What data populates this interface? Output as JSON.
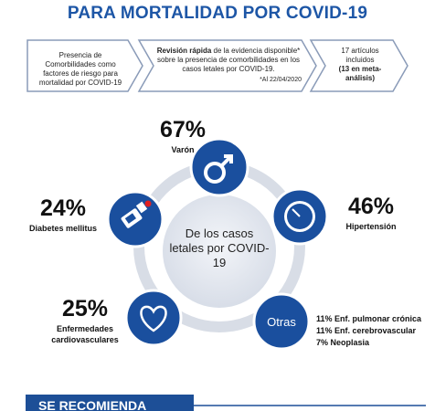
{
  "title": "PARA MORTALIDAD POR COVID-19",
  "steps": [
    {
      "text": "Presencia de Comorbilidades como factores de riesgo para mortalidad por COVID-19"
    },
    {
      "bold": "Revisión rápida",
      "text": "de la evidencia disponible* sobre la presencia de comorbilidades en los casos letales por COVID-19.",
      "note": "*Al 22/04/2020"
    },
    {
      "text": "17 artículos incluidos",
      "bold": "(13 en meta-análisis)"
    }
  ],
  "center": "De los casos letales por COVID-19",
  "items": [
    {
      "percent": "67%",
      "label": "Varón"
    },
    {
      "percent": "46%",
      "label": "Hipertensión"
    },
    {
      "percent": "24%",
      "label": "Diabetes mellitus"
    },
    {
      "percent": "25%",
      "label": "Enfermedades cardiovasculares"
    }
  ],
  "others": {
    "label": "Otras",
    "lines": [
      "11% Enf. pulmonar crónica",
      "11% Enf. cerebrovascular",
      "7% Neoplasia"
    ]
  },
  "section": "SE RECOMIENDA"
}
